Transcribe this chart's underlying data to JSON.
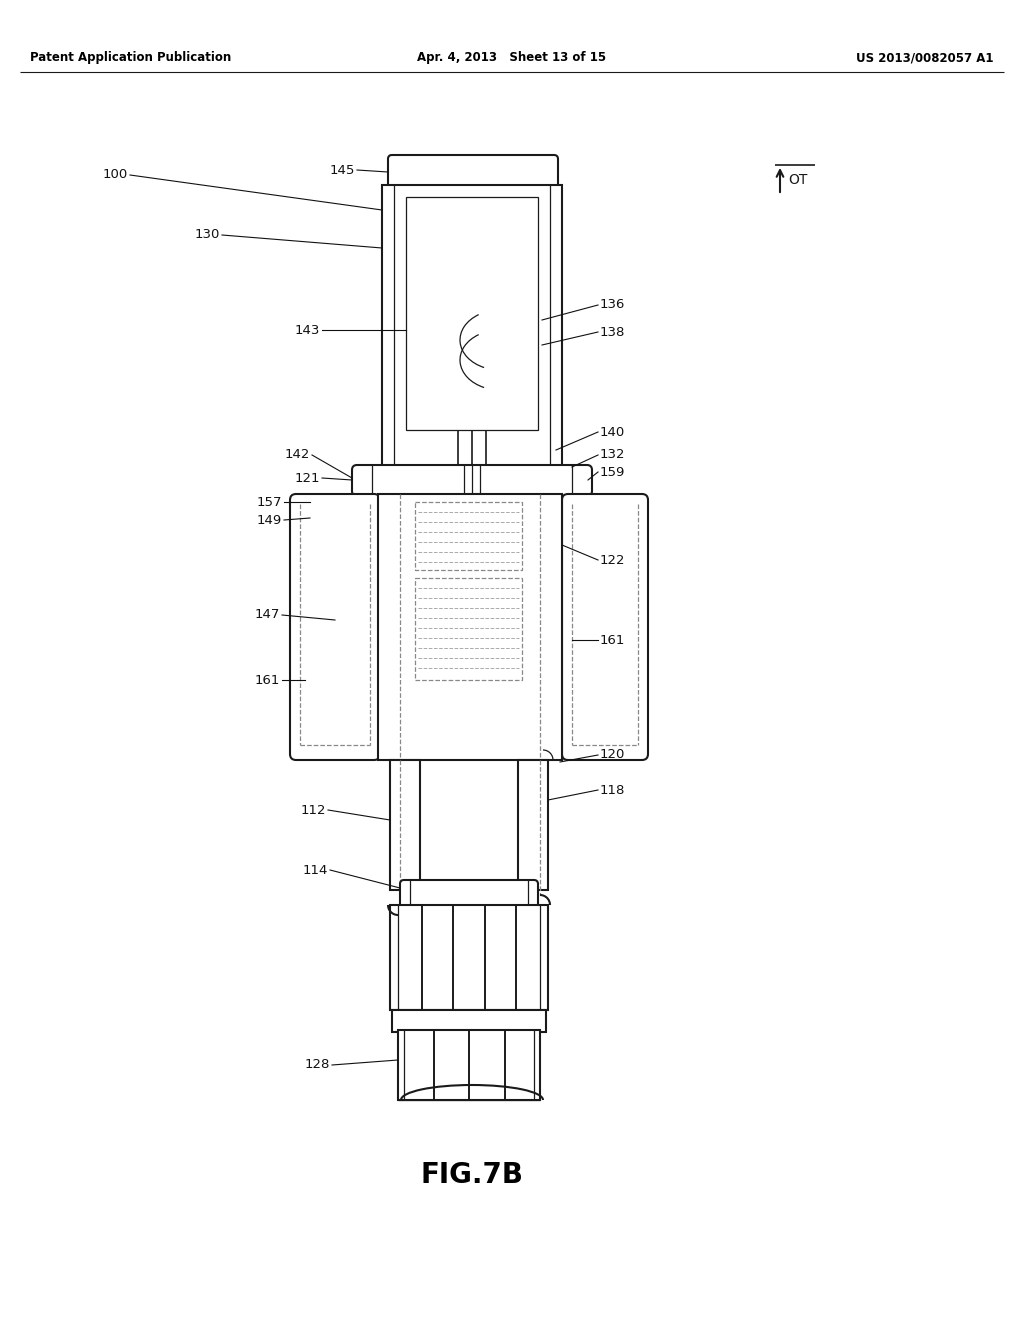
{
  "title": "FIG.7B",
  "header_left": "Patent Application Publication",
  "header_mid": "Apr. 4, 2013   Sheet 13 of 15",
  "header_right": "US 2013/0082057 A1",
  "bg_color": "#ffffff",
  "line_color": "#1a1a1a",
  "label_color": "#111111",
  "label_fs": 9.5,
  "title_fs": 20
}
